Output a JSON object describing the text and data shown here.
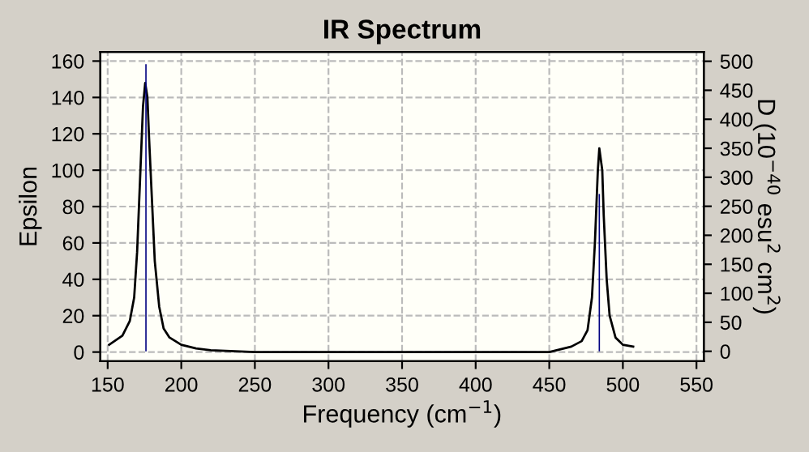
{
  "chart_data": {
    "type": "line",
    "title": "IR Spectrum",
    "xlabel": "Frequency (cm$^{−1}$)",
    "ylabel": "Epsilon",
    "y2label": "D (10$^{−40}$ esu$^{2}$ cm$^{2}$)",
    "xlim": [
      145,
      555
    ],
    "xticks": [
      150,
      200,
      250,
      300,
      350,
      400,
      450,
      500,
      550
    ],
    "ylim": [
      -5,
      165
    ],
    "yticks": [
      0,
      20,
      40,
      60,
      80,
      100,
      120,
      140,
      160
    ],
    "y2lim": [
      -17,
      516
    ],
    "y2ticks": [
      0,
      50,
      100,
      150,
      200,
      250,
      300,
      350,
      400,
      450,
      500
    ],
    "grid": true,
    "line_style": "solid",
    "series": [
      {
        "color": "#000000",
        "x": [
          151,
          160,
          165,
          168,
          170,
          172,
          174,
          175.5,
          177,
          178,
          180,
          182,
          185,
          188,
          192,
          200,
          210,
          220,
          250,
          300,
          350,
          400,
          450,
          465,
          472,
          476,
          479,
          481,
          483,
          484,
          486,
          487,
          489,
          491,
          495,
          500,
          507
        ],
        "values": [
          4,
          9,
          17,
          30,
          55,
          95,
          135,
          148,
          140,
          120,
          85,
          50,
          25,
          13,
          8,
          4,
          2,
          1,
          0,
          0,
          0,
          0,
          0,
          3,
          6,
          12,
          30,
          60,
          100,
          112,
          100,
          75,
          40,
          20,
          8,
          4,
          3
        ]
      },
      {
        "type": "bar",
        "axis": "y2",
        "color": "#000080",
        "x": [
          176,
          484
        ],
        "values": [
          495,
          271
        ]
      }
    ]
  }
}
